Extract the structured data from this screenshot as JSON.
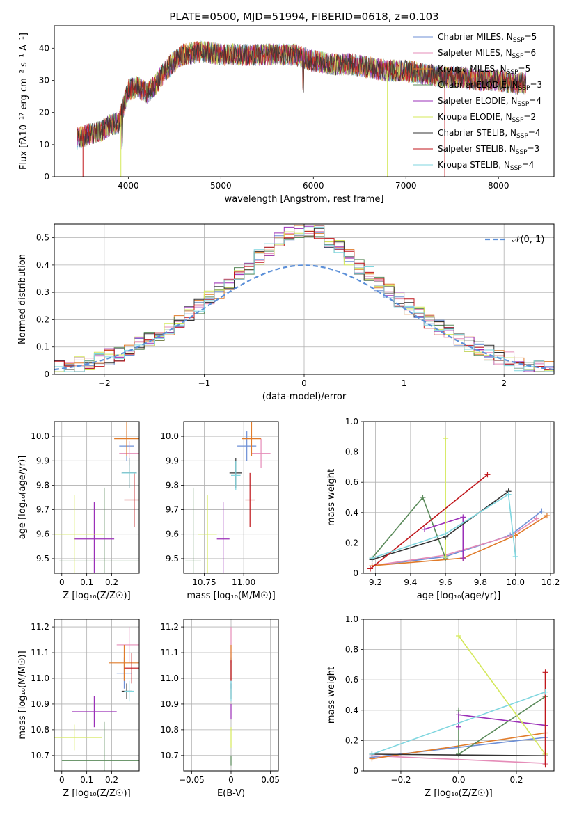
{
  "page_title": "PLATE=0500, MJD=51994, FIBERID=0618, z=0.103",
  "models": [
    {
      "name": "Chabrier MILES",
      "nssp": "5",
      "color": "#6d8fd6"
    },
    {
      "name": "Salpeter MILES",
      "nssp": "6",
      "color": "#e58cb8"
    },
    {
      "name": "Kroupa MILES",
      "nssp": "5",
      "color": "#e07b2a"
    },
    {
      "name": "Chabrier ELODIE",
      "nssp": "3",
      "color": "#5a8a5a"
    },
    {
      "name": "Salpeter ELODIE",
      "nssp": "4",
      "color": "#9b30b8"
    },
    {
      "name": "Kroupa ELODIE",
      "nssp": "2",
      "color": "#d4e85a"
    },
    {
      "name": "Chabrier STELIB",
      "nssp": "4",
      "color": "#333333"
    },
    {
      "name": "Salpeter STELIB",
      "nssp": "3",
      "color": "#c0161b"
    },
    {
      "name": "Kroupa STELIB",
      "nssp": "4",
      "color": "#7fd6df"
    }
  ],
  "chart_data": [
    {
      "id": "spectrum",
      "type": "line",
      "title": "PLATE=0500, MJD=51994, FIBERID=0618, z=0.103",
      "xlabel": "wavelength [Angstrom, rest frame]",
      "ylabel": "Flux [fλ10⁻¹⁷ erg cm⁻² s⁻¹ A⁻¹]",
      "xlim": [
        3200,
        8600
      ],
      "ylim": [
        0,
        47
      ],
      "xticks": [
        4000,
        5000,
        6000,
        7000,
        8000
      ],
      "yticks": [
        0,
        10,
        20,
        30,
        40
      ],
      "legend": "upper-right",
      "continuum": [
        [
          3450,
          12
        ],
        [
          3550,
          13
        ],
        [
          3700,
          14
        ],
        [
          3800,
          16
        ],
        [
          3900,
          17
        ],
        [
          4000,
          27
        ],
        [
          4100,
          28
        ],
        [
          4200,
          26
        ],
        [
          4300,
          29
        ],
        [
          4400,
          33
        ],
        [
          4500,
          36
        ],
        [
          4600,
          38
        ],
        [
          4800,
          39
        ],
        [
          5000,
          38
        ],
        [
          5200,
          38
        ],
        [
          5400,
          38
        ],
        [
          5600,
          38
        ],
        [
          5800,
          38
        ],
        [
          6000,
          36
        ],
        [
          6200,
          35
        ],
        [
          6400,
          35
        ],
        [
          6600,
          34
        ],
        [
          6800,
          33
        ],
        [
          7000,
          33
        ],
        [
          7200,
          32
        ],
        [
          7400,
          31
        ],
        [
          7600,
          31
        ],
        [
          7800,
          30
        ],
        [
          8000,
          30
        ],
        [
          8200,
          29
        ],
        [
          8300,
          29
        ]
      ]
    },
    {
      "id": "residuals",
      "type": "step",
      "xlabel": "(data-model)/error",
      "ylabel": "Normed distribution",
      "xlim": [
        -2.5,
        2.5
      ],
      "ylim": [
        0,
        0.55
      ],
      "xticks": [
        -2,
        -1,
        0,
        1,
        2
      ],
      "yticks": [
        0.0,
        0.1,
        0.2,
        0.3,
        0.4,
        0.5
      ],
      "reference": {
        "name": "𝒩(0, 1)",
        "mean": 0,
        "sigma": 1
      },
      "grid": true,
      "legend": "upper-right"
    },
    {
      "id": "age_vs_z",
      "type": "scatter",
      "xlabel": "Z [log₁₀(Z/Z☉)]",
      "ylabel": "age  [log₁₀(age/yr)]",
      "xlim": [
        -0.03,
        0.31
      ],
      "ylim": [
        9.44,
        10.06
      ],
      "xticks": [
        0.0,
        0.1,
        0.2
      ],
      "yticks": [
        9.5,
        9.6,
        9.7,
        9.8,
        9.9,
        10.0
      ],
      "points": [
        {
          "model": 0,
          "x": 0.26,
          "y": 9.96,
          "xerr": 0.03,
          "yerr": 0.06
        },
        {
          "model": 1,
          "x": 0.27,
          "y": 9.93,
          "xerr": 0.04,
          "yerr": 0.05
        },
        {
          "model": 2,
          "x": 0.26,
          "y": 9.99,
          "xerr": 0.05,
          "yerr": 0.07
        },
        {
          "model": 3,
          "x": 0.17,
          "y": 9.49,
          "xerr": 0.18,
          "yerr": 0.3
        },
        {
          "model": 4,
          "x": 0.13,
          "y": 9.58,
          "xerr": 0.08,
          "yerr": 0.15
        },
        {
          "model": 5,
          "x": 0.05,
          "y": 9.6,
          "xerr": 0.12,
          "yerr": 0.16
        },
        {
          "model": 6,
          "x": 0.27,
          "y": 9.85,
          "xerr": 0.03,
          "yerr": 0.06
        },
        {
          "model": 7,
          "x": 0.29,
          "y": 9.74,
          "xerr": 0.04,
          "yerr": 0.11
        },
        {
          "model": 8,
          "x": 0.27,
          "y": 9.85,
          "xerr": 0.03,
          "yerr": 0.06
        }
      ]
    },
    {
      "id": "age_vs_mass",
      "type": "scatter",
      "xlabel": "mass [log₁₀(M/M☉)]",
      "ylabel": "",
      "xlim": [
        10.62,
        11.22
      ],
      "ylim": [
        9.44,
        10.06
      ],
      "xticks": [
        10.75,
        11.0
      ],
      "yticks": [
        9.5,
        9.6,
        9.7,
        9.8,
        9.9,
        10.0
      ],
      "points": [
        {
          "model": 0,
          "x": 11.02,
          "y": 9.96,
          "xerr": 0.06,
          "yerr": 0.06
        },
        {
          "model": 1,
          "x": 11.11,
          "y": 9.93,
          "xerr": 0.06,
          "yerr": 0.06
        },
        {
          "model": 2,
          "x": 11.05,
          "y": 9.99,
          "xerr": 0.06,
          "yerr": 0.07
        },
        {
          "model": 3,
          "x": 10.68,
          "y": 9.49,
          "xerr": 0.05,
          "yerr": 0.3
        },
        {
          "model": 4,
          "x": 10.87,
          "y": 9.58,
          "xerr": 0.04,
          "yerr": 0.15
        },
        {
          "model": 5,
          "x": 10.77,
          "y": 9.6,
          "xerr": 0.06,
          "yerr": 0.16
        },
        {
          "model": 6,
          "x": 10.95,
          "y": 9.85,
          "xerr": 0.04,
          "yerr": 0.06
        },
        {
          "model": 7,
          "x": 11.04,
          "y": 9.74,
          "xerr": 0.03,
          "yerr": 0.11
        },
        {
          "model": 8,
          "x": 10.95,
          "y": 9.84,
          "xerr": 0.03,
          "yerr": 0.06
        }
      ]
    },
    {
      "id": "weight_vs_age",
      "type": "line",
      "xlabel": "age  [log₁₀(age/yr)]",
      "ylabel": "mass weight",
      "xlim": [
        9.13,
        10.22
      ],
      "ylim": [
        0,
        1
      ],
      "xticks": [
        9.2,
        9.4,
        9.6,
        9.8,
        10.0,
        10.2
      ],
      "yticks": [
        0.0,
        0.2,
        0.4,
        0.6,
        0.8,
        1.0
      ],
      "series": [
        {
          "model": 0,
          "x": [
            9.18,
            9.6,
            9.97,
            10.15
          ],
          "y": [
            0.05,
            0.11,
            0.25,
            0.41
          ]
        },
        {
          "model": 1,
          "x": [
            9.18,
            9.6,
            9.98,
            10.12
          ],
          "y": [
            0.05,
            0.12,
            0.25,
            0.36
          ]
        },
        {
          "model": 2,
          "x": [
            9.18,
            9.7,
            10.0,
            10.18
          ],
          "y": [
            0.05,
            0.1,
            0.25,
            0.38
          ]
        },
        {
          "model": 3,
          "x": [
            9.18,
            9.47,
            9.6
          ],
          "y": [
            0.1,
            0.5,
            0.1
          ]
        },
        {
          "model": 4,
          "x": [
            9.48,
            9.7,
            9.7
          ],
          "y": [
            0.29,
            0.37,
            0.1
          ]
        },
        {
          "model": 5,
          "x": [
            9.6,
            9.6
          ],
          "y": [
            0.89,
            0.11
          ]
        },
        {
          "model": 6,
          "x": [
            9.18,
            9.6,
            9.96
          ],
          "y": [
            0.09,
            0.24,
            0.54
          ]
        },
        {
          "model": 7,
          "x": [
            9.17,
            9.84
          ],
          "y": [
            0.03,
            0.65
          ]
        },
        {
          "model": 8,
          "x": [
            9.18,
            9.6,
            9.96,
            10.0
          ],
          "y": [
            0.1,
            0.26,
            0.52,
            0.11
          ]
        }
      ]
    },
    {
      "id": "mass_vs_z",
      "type": "scatter",
      "xlabel": "Z [log₁₀(Z/Z☉)]",
      "ylabel": "mass [log₁₀(M/M☉)]",
      "xlim": [
        -0.03,
        0.31
      ],
      "ylim": [
        10.64,
        11.23
      ],
      "xticks": [
        0.0,
        0.1,
        0.2
      ],
      "yticks": [
        10.7,
        10.8,
        10.9,
        11.0,
        11.1,
        11.2
      ],
      "points": [
        {
          "model": 0,
          "x": 0.25,
          "y": 11.02,
          "xerr": 0.03,
          "yerr": 0.06
        },
        {
          "model": 1,
          "x": 0.27,
          "y": 11.13,
          "xerr": 0.05,
          "yerr": 0.07
        },
        {
          "model": 2,
          "x": 0.25,
          "y": 11.06,
          "xerr": 0.06,
          "yerr": 0.07
        },
        {
          "model": 3,
          "x": 0.17,
          "y": 10.68,
          "xerr": 0.17,
          "yerr": 0.15
        },
        {
          "model": 4,
          "x": 0.13,
          "y": 10.87,
          "xerr": 0.09,
          "yerr": 0.06
        },
        {
          "model": 5,
          "x": 0.05,
          "y": 10.77,
          "xerr": 0.11,
          "yerr": 0.05
        },
        {
          "model": 6,
          "x": 0.26,
          "y": 10.95,
          "xerr": 0.02,
          "yerr": 0.03
        },
        {
          "model": 7,
          "x": 0.28,
          "y": 11.04,
          "xerr": 0.03,
          "yerr": 0.06
        },
        {
          "model": 8,
          "x": 0.27,
          "y": 10.95,
          "xerr": 0.02,
          "yerr": 0.04
        }
      ]
    },
    {
      "id": "mass_vs_ebv",
      "type": "scatter",
      "xlabel": "E(B-V)",
      "ylabel": "",
      "xlim": [
        -0.06,
        0.06
      ],
      "ylim": [
        10.64,
        11.23
      ],
      "xticks": [
        -0.05,
        0.0,
        0.05
      ],
      "yticks": [
        10.7,
        10.8,
        10.9,
        11.0,
        11.1,
        11.2
      ],
      "points": [
        {
          "model": 0,
          "x": 0.0,
          "y": 11.02,
          "xerr": 0.0,
          "yerr": 0.06
        },
        {
          "model": 1,
          "x": 0.0,
          "y": 11.13,
          "xerr": 0.0,
          "yerr": 0.07
        },
        {
          "model": 2,
          "x": 0.0,
          "y": 11.06,
          "xerr": 0.0,
          "yerr": 0.07
        },
        {
          "model": 3,
          "x": 0.0,
          "y": 10.68,
          "xerr": 0.0,
          "yerr": 0.02
        },
        {
          "model": 4,
          "x": 0.0,
          "y": 10.87,
          "xerr": 0.0,
          "yerr": 0.03
        },
        {
          "model": 5,
          "x": 0.0,
          "y": 10.77,
          "xerr": 0.0,
          "yerr": 0.04
        },
        {
          "model": 6,
          "x": 0.0,
          "y": 10.95,
          "xerr": 0.0,
          "yerr": 0.03
        },
        {
          "model": 7,
          "x": 0.0,
          "y": 11.03,
          "xerr": 0.0,
          "yerr": 0.04
        },
        {
          "model": 8,
          "x": 0.0,
          "y": 10.95,
          "xerr": 0.0,
          "yerr": 0.04
        }
      ]
    },
    {
      "id": "weight_vs_z",
      "type": "line",
      "xlabel": "Z [log₁₀(Z/Z☉)]",
      "ylabel": "mass weight",
      "xlim": [
        -0.33,
        0.33
      ],
      "ylim": [
        0,
        1
      ],
      "xticks": [
        -0.2,
        0.0,
        0.2
      ],
      "yticks": [
        0.0,
        0.2,
        0.4,
        0.6,
        0.8,
        1.0
      ],
      "series": [
        {
          "model": 0,
          "x": [
            -0.3,
            0.3
          ],
          "y": [
            0.09,
            0.22
          ]
        },
        {
          "model": 1,
          "x": [
            -0.3,
            0.3
          ],
          "y": [
            0.1,
            0.05
          ]
        },
        {
          "model": 2,
          "x": [
            -0.3,
            0.3
          ],
          "y": [
            0.08,
            0.25
          ]
        },
        {
          "model": 3,
          "x": [
            0.0,
            0.0,
            0.3
          ],
          "y": [
            0.4,
            0.11,
            0.49
          ]
        },
        {
          "model": 4,
          "x": [
            0.0,
            0.0,
            0.3
          ],
          "y": [
            0.29,
            0.37,
            0.3
          ]
        },
        {
          "model": 5,
          "x": [
            0.0,
            0.3
          ],
          "y": [
            0.89,
            0.11
          ]
        },
        {
          "model": 6,
          "x": [
            -0.3,
            0.3
          ],
          "y": [
            0.11,
            0.1
          ]
        },
        {
          "model": 7,
          "x": [
            0.3,
            0.3
          ],
          "y": [
            0.04,
            0.65
          ]
        },
        {
          "model": 8,
          "x": [
            -0.3,
            0.3
          ],
          "y": [
            0.11,
            0.52
          ]
        }
      ]
    }
  ]
}
